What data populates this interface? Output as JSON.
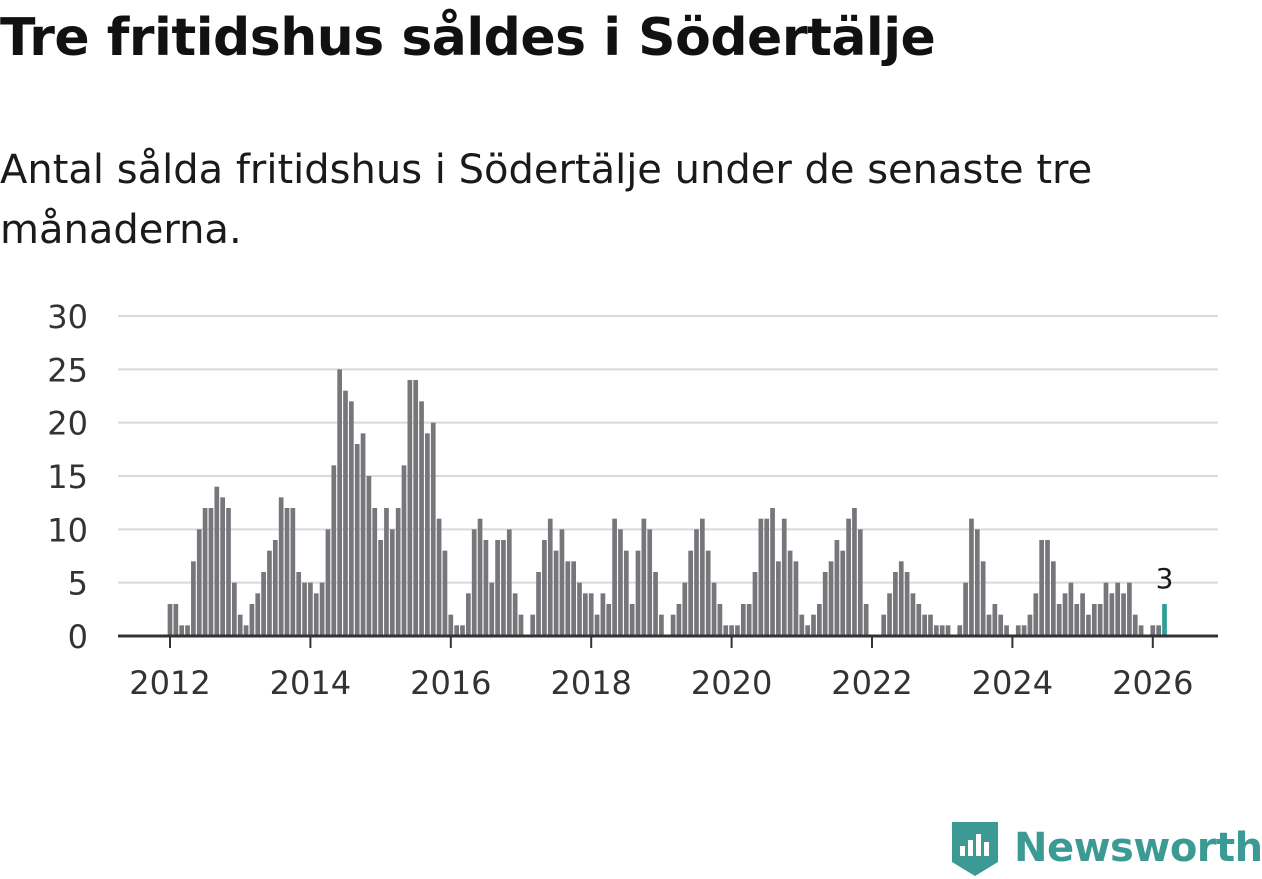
{
  "header": {
    "title": "Tre fritidshus såldes i Södertälje",
    "subtitle": "Antal sålda fritidshus i Södertälje under de senaste tre månaderna."
  },
  "colors": {
    "bar": "#77767b",
    "highlight": "#2e9f98",
    "grid": "#d9d9d9",
    "axis": "#333333",
    "brand": "#3c9a94"
  },
  "brand": {
    "name": "Newsworthy",
    "icon": "bar-chart-badge-icon"
  },
  "chart_data": {
    "type": "bar",
    "title": "Tre fritidshus såldes i Södertälje",
    "xlabel": "",
    "ylabel": "",
    "ylim": [
      0,
      30
    ],
    "yticks": [
      0,
      5,
      10,
      15,
      20,
      25,
      30
    ],
    "xticks": [
      {
        "label": "2012",
        "month_index": 0
      },
      {
        "label": "2014",
        "month_index": 24
      },
      {
        "label": "2016",
        "month_index": 48
      },
      {
        "label": "2018",
        "month_index": 72
      },
      {
        "label": "2020",
        "month_index": 96
      },
      {
        "label": "2022",
        "month_index": 120
      },
      {
        "label": "2024",
        "month_index": 144
      },
      {
        "label": "2026",
        "month_index": 168
      }
    ],
    "x_start": "2012-01",
    "x_unit": "month",
    "grid": true,
    "values": [
      3,
      3,
      1,
      1,
      7,
      10,
      12,
      12,
      14,
      13,
      12,
      5,
      2,
      1,
      3,
      4,
      6,
      8,
      9,
      13,
      12,
      12,
      6,
      5,
      5,
      4,
      5,
      10,
      16,
      25,
      23,
      22,
      18,
      19,
      15,
      12,
      9,
      12,
      10,
      12,
      16,
      24,
      24,
      22,
      19,
      20,
      11,
      8,
      2,
      1,
      1,
      4,
      10,
      11,
      9,
      5,
      9,
      9,
      10,
      4,
      2,
      0,
      2,
      6,
      9,
      11,
      8,
      10,
      7,
      7,
      5,
      4,
      4,
      2,
      4,
      3,
      11,
      10,
      8,
      3,
      8,
      11,
      10,
      6,
      2,
      0,
      2,
      3,
      5,
      8,
      10,
      11,
      8,
      5,
      3,
      1,
      1,
      1,
      3,
      3,
      6,
      11,
      11,
      12,
      7,
      11,
      8,
      7,
      2,
      1,
      2,
      3,
      6,
      7,
      9,
      8,
      11,
      12,
      10,
      3,
      0,
      0,
      2,
      4,
      6,
      7,
      6,
      4,
      3,
      2,
      2,
      1,
      1,
      1,
      0,
      1,
      5,
      11,
      10,
      7,
      2,
      3,
      2,
      1,
      0,
      1,
      1,
      2,
      4,
      9,
      9,
      7,
      3,
      4,
      5,
      3,
      4,
      2,
      3,
      3,
      5,
      4,
      5,
      4,
      5,
      2,
      1,
      0,
      1,
      1,
      3
    ],
    "highlight_index": 170,
    "highlight_label": "3"
  }
}
